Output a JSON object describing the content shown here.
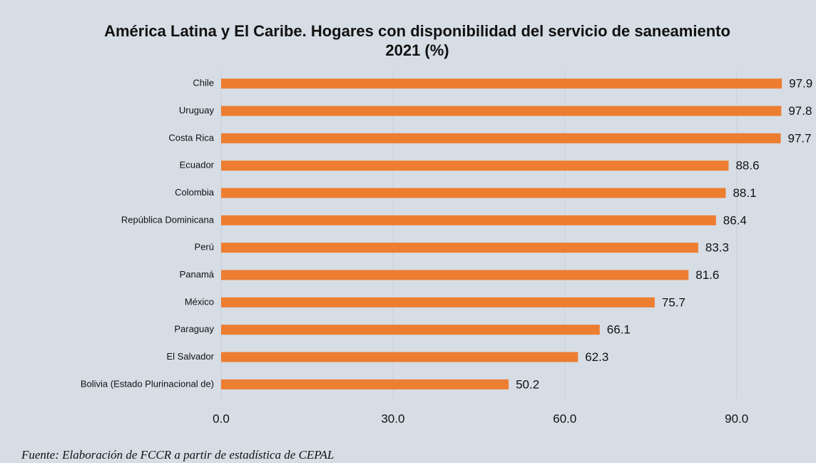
{
  "chart_data": {
    "type": "bar",
    "orientation": "horizontal",
    "title": "América Latina y El Caribe. Hogares con disponibilidad del servicio de saneamiento 2021 (%)",
    "categories": [
      "Chile",
      "Uruguay",
      "Costa Rica",
      "Ecuador",
      "Colombia",
      "República Dominicana",
      "Perú",
      "Panamá",
      "México",
      "Paraguay",
      "El Salvador",
      "Bolivia (Estado Plurinacional de)"
    ],
    "values": [
      97.9,
      97.8,
      97.7,
      88.6,
      88.1,
      86.4,
      83.3,
      81.6,
      75.7,
      66.1,
      62.3,
      50.2
    ],
    "color": "#ed7d31",
    "xlim": [
      0,
      100
    ],
    "xticks": [
      {
        "value": 0,
        "label": "0.0"
      },
      {
        "value": 30,
        "label": "30.0"
      },
      {
        "value": 60,
        "label": "60.0"
      },
      {
        "value": 90,
        "label": "90.0"
      }
    ],
    "grid": true,
    "source": "Fuente: Elaboración de FCCR a partir de estadística de CEPAL"
  }
}
